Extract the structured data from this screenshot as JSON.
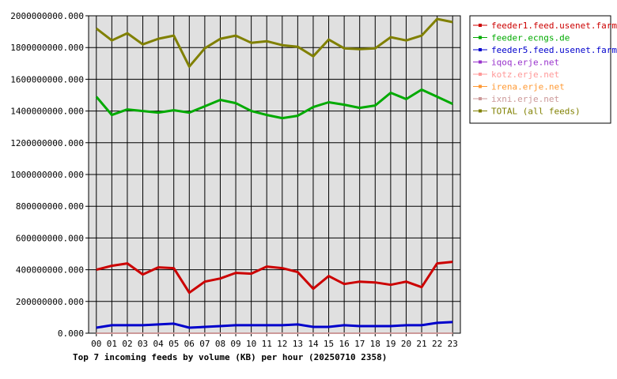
{
  "chart_data": {
    "type": "line",
    "title": "Top 7 incoming feeds by volume (KB) per hour (20250710 2358)",
    "xlabel": "",
    "ylabel": "",
    "categories": [
      "00",
      "01",
      "02",
      "03",
      "04",
      "05",
      "06",
      "07",
      "08",
      "09",
      "10",
      "11",
      "12",
      "13",
      "14",
      "15",
      "16",
      "17",
      "18",
      "19",
      "20",
      "21",
      "22",
      "23"
    ],
    "ylim": [
      0,
      2000000000
    ],
    "yticks": [
      0,
      200000000,
      400000000,
      600000000,
      800000000,
      1000000000,
      1200000000,
      1400000000,
      1600000000,
      1800000000,
      2000000000
    ],
    "ytick_labels": [
      "0.000",
      "200000000.000",
      "400000000.000",
      "600000000.000",
      "800000000.000",
      "1000000000.000",
      "1200000000.000",
      "1400000000.000",
      "1600000000.000",
      "1800000000.000",
      "2000000000.000"
    ],
    "grid": true,
    "legend_position": "right",
    "series": [
      {
        "name": "feeder1.feed.usenet.farm",
        "color": "#cc0000",
        "values": [
          400000000,
          425000000,
          440000000,
          370000000,
          415000000,
          410000000,
          255000000,
          325000000,
          345000000,
          380000000,
          375000000,
          420000000,
          410000000,
          385000000,
          280000000,
          360000000,
          310000000,
          325000000,
          320000000,
          305000000,
          325000000,
          290000000,
          440000000,
          450000000
        ]
      },
      {
        "name": "feeder.ecngs.de",
        "color": "#00aa00",
        "values": [
          1490000000,
          1375000000,
          1410000000,
          1400000000,
          1390000000,
          1405000000,
          1390000000,
          1430000000,
          1470000000,
          1450000000,
          1400000000,
          1375000000,
          1355000000,
          1370000000,
          1425000000,
          1455000000,
          1440000000,
          1420000000,
          1435000000,
          1515000000,
          1475000000,
          1535000000,
          1490000000,
          1445000000
        ]
      },
      {
        "name": "feeder5.feed.usenet.farm",
        "color": "#0000cc",
        "values": [
          35000000,
          50000000,
          50000000,
          50000000,
          55000000,
          60000000,
          35000000,
          40000000,
          45000000,
          50000000,
          50000000,
          50000000,
          50000000,
          55000000,
          40000000,
          40000000,
          50000000,
          45000000,
          45000000,
          45000000,
          50000000,
          50000000,
          65000000,
          70000000
        ]
      },
      {
        "name": "iqoq.erje.net",
        "color": "#9933cc",
        "values": [
          0,
          0,
          0,
          0,
          0,
          0,
          0,
          0,
          0,
          0,
          0,
          0,
          0,
          0,
          0,
          0,
          0,
          0,
          0,
          0,
          0,
          0,
          0,
          0
        ]
      },
      {
        "name": "kotz.erje.net",
        "color": "#ff9999",
        "values": [
          0,
          0,
          0,
          0,
          0,
          0,
          0,
          0,
          0,
          0,
          0,
          0,
          0,
          0,
          0,
          0,
          0,
          0,
          0,
          0,
          0,
          0,
          0,
          0
        ]
      },
      {
        "name": "irena.erje.net",
        "color": "#ff9933",
        "values": [
          0,
          0,
          0,
          0,
          0,
          0,
          0,
          0,
          0,
          0,
          0,
          0,
          0,
          0,
          0,
          0,
          0,
          0,
          0,
          0,
          0,
          0,
          0,
          0
        ]
      },
      {
        "name": "ixni.erje.net",
        "color": "#cc9999",
        "values": [
          0,
          0,
          0,
          0,
          0,
          0,
          0,
          0,
          0,
          0,
          0,
          0,
          0,
          0,
          0,
          0,
          0,
          0,
          0,
          0,
          0,
          0,
          0,
          0
        ]
      },
      {
        "name": "TOTAL (all feeds)",
        "color": "#808000",
        "values": [
          1920000000,
          1845000000,
          1890000000,
          1820000000,
          1855000000,
          1875000000,
          1680000000,
          1795000000,
          1855000000,
          1875000000,
          1830000000,
          1840000000,
          1815000000,
          1805000000,
          1745000000,
          1850000000,
          1795000000,
          1790000000,
          1795000000,
          1865000000,
          1845000000,
          1875000000,
          1980000000,
          1960000000
        ]
      }
    ]
  }
}
